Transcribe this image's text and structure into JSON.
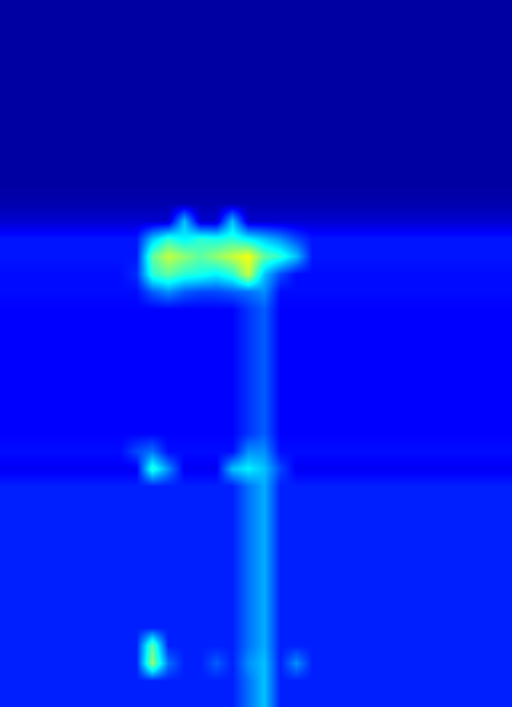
{
  "chart_data": {
    "type": "heatmap",
    "tick_labels": false,
    "zlim": [
      0,
      1
    ],
    "cells": [
      [
        0.03,
        0.03,
        0.03,
        0.03,
        0.03,
        0.03,
        0.03,
        0.03,
        0.03,
        0.03,
        0.03,
        0.03,
        0.03,
        0.03,
        0.03,
        0.03,
        0.03,
        0.03,
        0.03,
        0.03,
        0.03,
        0.03,
        0.03,
        0.03,
        0.03,
        0.03,
        0.03,
        0.03,
        0.03,
        0.03,
        0.03,
        0.03
      ],
      [
        0.03,
        0.03,
        0.03,
        0.03,
        0.03,
        0.03,
        0.03,
        0.03,
        0.03,
        0.03,
        0.03,
        0.03,
        0.03,
        0.03,
        0.03,
        0.03,
        0.03,
        0.03,
        0.03,
        0.03,
        0.03,
        0.03,
        0.03,
        0.03,
        0.03,
        0.03,
        0.03,
        0.03,
        0.03,
        0.03,
        0.03,
        0.03
      ],
      [
        0.03,
        0.03,
        0.03,
        0.03,
        0.03,
        0.03,
        0.03,
        0.03,
        0.03,
        0.03,
        0.03,
        0.03,
        0.03,
        0.03,
        0.03,
        0.03,
        0.03,
        0.03,
        0.03,
        0.03,
        0.03,
        0.03,
        0.03,
        0.03,
        0.03,
        0.03,
        0.03,
        0.03,
        0.03,
        0.03,
        0.03,
        0.03
      ],
      [
        0.03,
        0.03,
        0.03,
        0.03,
        0.03,
        0.03,
        0.03,
        0.03,
        0.03,
        0.03,
        0.03,
        0.03,
        0.03,
        0.03,
        0.03,
        0.03,
        0.03,
        0.03,
        0.03,
        0.03,
        0.03,
        0.03,
        0.03,
        0.03,
        0.03,
        0.03,
        0.03,
        0.03,
        0.03,
        0.03,
        0.03,
        0.03
      ],
      [
        0.03,
        0.03,
        0.03,
        0.03,
        0.03,
        0.03,
        0.03,
        0.03,
        0.03,
        0.03,
        0.03,
        0.03,
        0.03,
        0.03,
        0.03,
        0.03,
        0.03,
        0.03,
        0.03,
        0.03,
        0.03,
        0.03,
        0.03,
        0.03,
        0.03,
        0.03,
        0.03,
        0.03,
        0.03,
        0.03,
        0.03,
        0.03
      ],
      [
        0.03,
        0.03,
        0.03,
        0.03,
        0.03,
        0.03,
        0.03,
        0.03,
        0.03,
        0.03,
        0.03,
        0.03,
        0.03,
        0.03,
        0.03,
        0.03,
        0.03,
        0.03,
        0.03,
        0.03,
        0.03,
        0.03,
        0.03,
        0.03,
        0.03,
        0.03,
        0.03,
        0.03,
        0.03,
        0.03,
        0.03,
        0.03
      ],
      [
        0.03,
        0.03,
        0.03,
        0.03,
        0.03,
        0.03,
        0.03,
        0.03,
        0.03,
        0.03,
        0.03,
        0.03,
        0.03,
        0.03,
        0.03,
        0.03,
        0.03,
        0.03,
        0.03,
        0.03,
        0.03,
        0.03,
        0.03,
        0.03,
        0.03,
        0.03,
        0.03,
        0.03,
        0.03,
        0.03,
        0.03,
        0.03
      ],
      [
        0.03,
        0.03,
        0.03,
        0.03,
        0.03,
        0.03,
        0.03,
        0.03,
        0.03,
        0.03,
        0.03,
        0.03,
        0.03,
        0.03,
        0.03,
        0.03,
        0.03,
        0.03,
        0.03,
        0.03,
        0.03,
        0.03,
        0.03,
        0.03,
        0.03,
        0.03,
        0.03,
        0.03,
        0.03,
        0.03,
        0.03,
        0.03
      ],
      [
        0.03,
        0.03,
        0.03,
        0.03,
        0.03,
        0.03,
        0.03,
        0.03,
        0.03,
        0.03,
        0.03,
        0.03,
        0.03,
        0.03,
        0.03,
        0.03,
        0.03,
        0.03,
        0.03,
        0.03,
        0.03,
        0.03,
        0.03,
        0.03,
        0.03,
        0.03,
        0.03,
        0.03,
        0.03,
        0.03,
        0.03,
        0.03
      ],
      [
        0.03,
        0.03,
        0.03,
        0.03,
        0.03,
        0.03,
        0.03,
        0.03,
        0.03,
        0.03,
        0.03,
        0.03,
        0.03,
        0.03,
        0.03,
        0.03,
        0.03,
        0.03,
        0.03,
        0.03,
        0.03,
        0.03,
        0.03,
        0.03,
        0.03,
        0.03,
        0.03,
        0.03,
        0.03,
        0.03,
        0.03,
        0.03
      ],
      [
        0.03,
        0.03,
        0.03,
        0.03,
        0.03,
        0.03,
        0.03,
        0.03,
        0.03,
        0.03,
        0.03,
        0.03,
        0.03,
        0.03,
        0.03,
        0.03,
        0.03,
        0.03,
        0.03,
        0.03,
        0.03,
        0.03,
        0.03,
        0.03,
        0.03,
        0.03,
        0.03,
        0.03,
        0.03,
        0.03,
        0.03,
        0.03
      ],
      [
        0.04,
        0.04,
        0.04,
        0.04,
        0.04,
        0.04,
        0.04,
        0.04,
        0.04,
        0.04,
        0.04,
        0.04,
        0.04,
        0.04,
        0.04,
        0.04,
        0.04,
        0.04,
        0.04,
        0.04,
        0.04,
        0.04,
        0.04,
        0.04,
        0.04,
        0.04,
        0.04,
        0.04,
        0.04,
        0.04,
        0.04,
        0.04
      ],
      [
        0.07,
        0.07,
        0.07,
        0.07,
        0.07,
        0.07,
        0.07,
        0.07,
        0.07,
        0.07,
        0.07,
        0.3,
        0.07,
        0.07,
        0.3,
        0.07,
        0.07,
        0.07,
        0.07,
        0.07,
        0.07,
        0.07,
        0.07,
        0.07,
        0.07,
        0.07,
        0.07,
        0.07,
        0.07,
        0.07,
        0.07,
        0.07
      ],
      [
        0.13,
        0.13,
        0.13,
        0.13,
        0.13,
        0.13,
        0.13,
        0.13,
        0.13,
        0.3,
        0.4,
        0.35,
        0.4,
        0.38,
        0.4,
        0.35,
        0.3,
        0.25,
        0.18,
        0.13,
        0.13,
        0.13,
        0.13,
        0.13,
        0.13,
        0.13,
        0.13,
        0.13,
        0.13,
        0.13,
        0.13,
        0.13
      ],
      [
        0.13,
        0.13,
        0.13,
        0.13,
        0.13,
        0.13,
        0.13,
        0.13,
        0.13,
        0.45,
        0.55,
        0.5,
        0.45,
        0.5,
        0.55,
        0.6,
        0.45,
        0.4,
        0.3,
        0.13,
        0.13,
        0.13,
        0.13,
        0.13,
        0.13,
        0.13,
        0.13,
        0.13,
        0.13,
        0.13,
        0.13,
        0.13
      ],
      [
        0.12,
        0.12,
        0.12,
        0.12,
        0.12,
        0.12,
        0.12,
        0.12,
        0.15,
        0.4,
        0.45,
        0.4,
        0.38,
        0.35,
        0.4,
        0.55,
        0.3,
        0.18,
        0.12,
        0.12,
        0.12,
        0.12,
        0.12,
        0.12,
        0.12,
        0.12,
        0.12,
        0.12,
        0.12,
        0.12,
        0.12,
        0.12
      ],
      [
        0.12,
        0.12,
        0.12,
        0.12,
        0.12,
        0.12,
        0.12,
        0.12,
        0.12,
        0.2,
        0.25,
        0.2,
        0.18,
        0.18,
        0.2,
        0.22,
        0.25,
        0.12,
        0.12,
        0.12,
        0.12,
        0.12,
        0.12,
        0.12,
        0.12,
        0.12,
        0.12,
        0.12,
        0.12,
        0.12,
        0.12,
        0.12
      ],
      [
        0.11,
        0.11,
        0.11,
        0.11,
        0.11,
        0.11,
        0.11,
        0.11,
        0.11,
        0.11,
        0.11,
        0.11,
        0.11,
        0.11,
        0.11,
        0.16,
        0.2,
        0.11,
        0.11,
        0.11,
        0.11,
        0.11,
        0.11,
        0.11,
        0.11,
        0.11,
        0.11,
        0.11,
        0.11,
        0.11,
        0.11,
        0.11
      ],
      [
        0.11,
        0.11,
        0.11,
        0.11,
        0.11,
        0.11,
        0.11,
        0.11,
        0.11,
        0.11,
        0.11,
        0.11,
        0.11,
        0.11,
        0.11,
        0.16,
        0.2,
        0.11,
        0.11,
        0.11,
        0.11,
        0.11,
        0.11,
        0.11,
        0.11,
        0.11,
        0.11,
        0.11,
        0.11,
        0.11,
        0.11,
        0.11
      ],
      [
        0.11,
        0.11,
        0.11,
        0.11,
        0.11,
        0.11,
        0.11,
        0.11,
        0.11,
        0.11,
        0.11,
        0.11,
        0.11,
        0.11,
        0.11,
        0.16,
        0.2,
        0.11,
        0.11,
        0.11,
        0.11,
        0.11,
        0.11,
        0.11,
        0.11,
        0.11,
        0.11,
        0.11,
        0.11,
        0.11,
        0.11,
        0.11
      ],
      [
        0.11,
        0.11,
        0.11,
        0.11,
        0.11,
        0.11,
        0.11,
        0.11,
        0.11,
        0.11,
        0.11,
        0.11,
        0.11,
        0.11,
        0.11,
        0.16,
        0.2,
        0.11,
        0.11,
        0.11,
        0.11,
        0.11,
        0.11,
        0.11,
        0.11,
        0.11,
        0.11,
        0.11,
        0.11,
        0.11,
        0.11,
        0.11
      ],
      [
        0.11,
        0.11,
        0.11,
        0.11,
        0.11,
        0.11,
        0.11,
        0.11,
        0.11,
        0.11,
        0.11,
        0.11,
        0.11,
        0.11,
        0.11,
        0.16,
        0.2,
        0.11,
        0.11,
        0.11,
        0.11,
        0.11,
        0.11,
        0.11,
        0.11,
        0.11,
        0.11,
        0.11,
        0.11,
        0.11,
        0.11,
        0.11
      ],
      [
        0.11,
        0.11,
        0.11,
        0.11,
        0.11,
        0.11,
        0.11,
        0.11,
        0.11,
        0.11,
        0.11,
        0.11,
        0.11,
        0.11,
        0.11,
        0.16,
        0.2,
        0.11,
        0.11,
        0.11,
        0.11,
        0.11,
        0.11,
        0.11,
        0.11,
        0.11,
        0.11,
        0.11,
        0.11,
        0.11,
        0.11,
        0.11
      ],
      [
        0.11,
        0.11,
        0.11,
        0.11,
        0.11,
        0.11,
        0.11,
        0.11,
        0.11,
        0.11,
        0.11,
        0.11,
        0.11,
        0.11,
        0.11,
        0.16,
        0.2,
        0.11,
        0.11,
        0.11,
        0.11,
        0.11,
        0.11,
        0.11,
        0.11,
        0.11,
        0.11,
        0.11,
        0.11,
        0.11,
        0.11,
        0.11
      ],
      [
        0.11,
        0.11,
        0.11,
        0.11,
        0.11,
        0.11,
        0.11,
        0.11,
        0.11,
        0.11,
        0.11,
        0.11,
        0.11,
        0.11,
        0.11,
        0.16,
        0.2,
        0.11,
        0.11,
        0.11,
        0.11,
        0.11,
        0.11,
        0.11,
        0.11,
        0.11,
        0.11,
        0.11,
        0.11,
        0.11,
        0.11,
        0.11
      ],
      [
        0.12,
        0.12,
        0.12,
        0.12,
        0.12,
        0.12,
        0.12,
        0.12,
        0.18,
        0.22,
        0.12,
        0.12,
        0.12,
        0.12,
        0.12,
        0.25,
        0.25,
        0.12,
        0.12,
        0.12,
        0.12,
        0.12,
        0.12,
        0.12,
        0.12,
        0.12,
        0.12,
        0.12,
        0.12,
        0.12,
        0.12,
        0.12
      ],
      [
        0.1,
        0.1,
        0.1,
        0.1,
        0.1,
        0.1,
        0.1,
        0.1,
        0.1,
        0.4,
        0.25,
        0.1,
        0.1,
        0.1,
        0.3,
        0.35,
        0.3,
        0.18,
        0.1,
        0.1,
        0.1,
        0.1,
        0.1,
        0.1,
        0.1,
        0.1,
        0.1,
        0.1,
        0.1,
        0.1,
        0.1,
        0.1
      ],
      [
        0.14,
        0.14,
        0.14,
        0.14,
        0.14,
        0.14,
        0.14,
        0.14,
        0.14,
        0.14,
        0.14,
        0.14,
        0.14,
        0.14,
        0.14,
        0.22,
        0.28,
        0.14,
        0.14,
        0.14,
        0.14,
        0.14,
        0.14,
        0.14,
        0.14,
        0.14,
        0.14,
        0.14,
        0.14,
        0.14,
        0.14,
        0.14
      ],
      [
        0.14,
        0.14,
        0.14,
        0.14,
        0.14,
        0.14,
        0.14,
        0.14,
        0.14,
        0.14,
        0.14,
        0.14,
        0.14,
        0.14,
        0.14,
        0.22,
        0.28,
        0.14,
        0.14,
        0.14,
        0.14,
        0.14,
        0.14,
        0.14,
        0.14,
        0.14,
        0.14,
        0.14,
        0.14,
        0.14,
        0.14,
        0.14
      ],
      [
        0.14,
        0.14,
        0.14,
        0.14,
        0.14,
        0.14,
        0.14,
        0.14,
        0.14,
        0.14,
        0.14,
        0.14,
        0.14,
        0.14,
        0.14,
        0.22,
        0.28,
        0.14,
        0.14,
        0.14,
        0.14,
        0.14,
        0.14,
        0.14,
        0.14,
        0.14,
        0.14,
        0.14,
        0.14,
        0.14,
        0.14,
        0.14
      ],
      [
        0.14,
        0.14,
        0.14,
        0.14,
        0.14,
        0.14,
        0.14,
        0.14,
        0.14,
        0.14,
        0.14,
        0.14,
        0.14,
        0.14,
        0.14,
        0.22,
        0.28,
        0.14,
        0.14,
        0.14,
        0.14,
        0.14,
        0.14,
        0.14,
        0.14,
        0.14,
        0.14,
        0.14,
        0.14,
        0.14,
        0.14,
        0.14
      ],
      [
        0.14,
        0.14,
        0.14,
        0.14,
        0.14,
        0.14,
        0.14,
        0.14,
        0.14,
        0.14,
        0.14,
        0.14,
        0.14,
        0.14,
        0.14,
        0.22,
        0.28,
        0.14,
        0.14,
        0.14,
        0.14,
        0.14,
        0.14,
        0.14,
        0.14,
        0.14,
        0.14,
        0.14,
        0.14,
        0.14,
        0.14,
        0.14
      ],
      [
        0.14,
        0.14,
        0.14,
        0.14,
        0.14,
        0.14,
        0.14,
        0.14,
        0.14,
        0.14,
        0.14,
        0.14,
        0.14,
        0.14,
        0.14,
        0.22,
        0.28,
        0.14,
        0.14,
        0.14,
        0.14,
        0.14,
        0.14,
        0.14,
        0.14,
        0.14,
        0.14,
        0.14,
        0.14,
        0.14,
        0.14,
        0.14
      ],
      [
        0.14,
        0.14,
        0.14,
        0.14,
        0.14,
        0.14,
        0.14,
        0.14,
        0.14,
        0.14,
        0.14,
        0.14,
        0.14,
        0.14,
        0.14,
        0.22,
        0.28,
        0.14,
        0.14,
        0.14,
        0.14,
        0.14,
        0.14,
        0.14,
        0.14,
        0.14,
        0.14,
        0.14,
        0.14,
        0.14,
        0.14,
        0.14
      ],
      [
        0.14,
        0.14,
        0.14,
        0.14,
        0.14,
        0.14,
        0.14,
        0.14,
        0.14,
        0.14,
        0.14,
        0.14,
        0.14,
        0.14,
        0.14,
        0.22,
        0.28,
        0.14,
        0.14,
        0.14,
        0.14,
        0.14,
        0.14,
        0.14,
        0.14,
        0.14,
        0.14,
        0.14,
        0.14,
        0.14,
        0.14,
        0.14
      ],
      [
        0.14,
        0.14,
        0.14,
        0.14,
        0.14,
        0.14,
        0.14,
        0.14,
        0.14,
        0.14,
        0.14,
        0.14,
        0.14,
        0.14,
        0.14,
        0.22,
        0.28,
        0.14,
        0.14,
        0.14,
        0.14,
        0.14,
        0.14,
        0.14,
        0.14,
        0.14,
        0.14,
        0.14,
        0.14,
        0.14,
        0.14,
        0.14
      ],
      [
        0.14,
        0.14,
        0.14,
        0.14,
        0.14,
        0.14,
        0.14,
        0.14,
        0.14,
        0.45,
        0.14,
        0.14,
        0.14,
        0.14,
        0.14,
        0.22,
        0.28,
        0.14,
        0.14,
        0.14,
        0.14,
        0.14,
        0.14,
        0.14,
        0.14,
        0.14,
        0.14,
        0.14,
        0.14,
        0.14,
        0.14,
        0.14
      ],
      [
        0.14,
        0.14,
        0.14,
        0.14,
        0.14,
        0.14,
        0.14,
        0.14,
        0.14,
        0.5,
        0.22,
        0.14,
        0.14,
        0.2,
        0.14,
        0.25,
        0.3,
        0.14,
        0.25,
        0.14,
        0.14,
        0.14,
        0.14,
        0.14,
        0.14,
        0.14,
        0.14,
        0.14,
        0.14,
        0.14,
        0.14,
        0.14
      ],
      [
        0.14,
        0.14,
        0.14,
        0.14,
        0.14,
        0.14,
        0.14,
        0.14,
        0.14,
        0.14,
        0.14,
        0.14,
        0.14,
        0.14,
        0.14,
        0.22,
        0.3,
        0.14,
        0.14,
        0.14,
        0.14,
        0.14,
        0.14,
        0.14,
        0.14,
        0.14,
        0.14,
        0.14,
        0.14,
        0.14,
        0.14,
        0.14
      ],
      [
        0.14,
        0.14,
        0.14,
        0.14,
        0.14,
        0.14,
        0.14,
        0.14,
        0.14,
        0.14,
        0.14,
        0.14,
        0.14,
        0.14,
        0.14,
        0.22,
        0.3,
        0.14,
        0.14,
        0.14,
        0.14,
        0.14,
        0.14,
        0.14,
        0.14,
        0.14,
        0.14,
        0.14,
        0.14,
        0.14,
        0.14,
        0.14
      ]
    ]
  }
}
